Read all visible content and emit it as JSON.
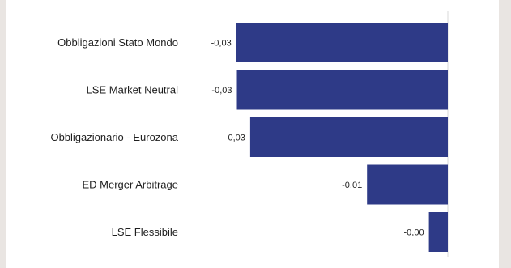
{
  "chart_data": {
    "type": "bar",
    "orientation": "horizontal",
    "categories": [
      "Obbligazioni Stato Mondo",
      "LSE Market Neutral",
      "Obbligazionario - Eurozona",
      "ED Merger Arbitrage",
      "LSE Flessibile"
    ],
    "values": [
      -0.0335,
      -0.0334,
      -0.0313,
      -0.0128,
      -0.003
    ],
    "value_labels": [
      "-0,03",
      "-0,03",
      "-0,03",
      "-0,01",
      "-0,00"
    ],
    "xlim": [
      -0.034,
      0.0
    ],
    "title": "",
    "xlabel": "",
    "ylabel": "",
    "grid": false,
    "bar_color": "#2e3a87",
    "zero_line_color": "#d9d9d9"
  }
}
